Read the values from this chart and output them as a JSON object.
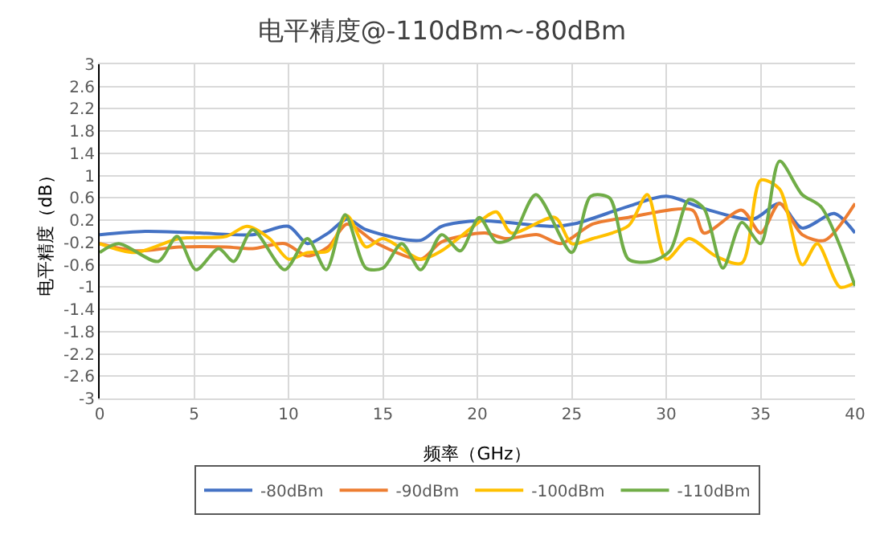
{
  "chart_data": {
    "type": "line",
    "title": "电平精度@-110dBm~-80dBm",
    "xlabel": "频率（GHz）",
    "ylabel": "电平精度（dB）",
    "xlim": [
      0,
      40
    ],
    "xticks": [
      0,
      5,
      10,
      15,
      20,
      25,
      30,
      35,
      40
    ],
    "ylim": [
      -3,
      3
    ],
    "yticks": [
      -3,
      -2.6,
      -2.2,
      -1.8,
      -1.4,
      -1,
      -0.6,
      -0.2,
      0.2,
      0.6,
      1,
      1.4,
      1.8,
      2.2,
      2.6,
      3
    ],
    "grid": true,
    "legend": "bottom",
    "marker": "none",
    "line_style": "solid",
    "series": [
      {
        "name": "-80dBm",
        "color": "#4472c4",
        "x": [
          0,
          2.4,
          5.3,
          8.1,
          10,
          11,
          12.1,
          13.1,
          14.1,
          17,
          18.1,
          20.1,
          24,
          25.2,
          28,
          30,
          32,
          34.6,
          36,
          37.2,
          38.9,
          40
        ],
        "values": [
          -0.06,
          0,
          -0.03,
          -0.06,
          0.09,
          -0.22,
          -0.03,
          0.22,
          0.03,
          -0.16,
          0.09,
          0.19,
          0.09,
          0.14,
          0.45,
          0.63,
          0.41,
          0.22,
          0.5,
          0.06,
          0.32,
          -0.03
        ]
      },
      {
        "name": "-90dBm",
        "color": "#ed7d31",
        "x": [
          0,
          1.9,
          4.2,
          6.7,
          8.1,
          9.8,
          11,
          12.1,
          13.1,
          14.7,
          17,
          18.1,
          20.4,
          21.5,
          23.2,
          24.4,
          26.1,
          28,
          31.4,
          32,
          34,
          35,
          36,
          37.2,
          38.4,
          40
        ],
        "values": [
          -0.22,
          -0.35,
          -0.28,
          -0.28,
          -0.31,
          -0.22,
          -0.44,
          -0.28,
          0.13,
          -0.22,
          -0.5,
          -0.19,
          -0.03,
          -0.13,
          -0.06,
          -0.22,
          0.13,
          0.25,
          0.38,
          -0.03,
          0.38,
          -0.03,
          0.5,
          -0.06,
          -0.16,
          0.5
        ]
      },
      {
        "name": "-100dBm",
        "color": "#ffc000",
        "x": [
          0,
          1.9,
          4.2,
          6.7,
          7.8,
          9,
          10,
          11,
          12.1,
          13.1,
          14.1,
          15,
          17,
          18.1,
          19.8,
          21,
          21.8,
          24.1,
          25,
          26.1,
          28,
          29,
          30,
          31.2,
          32.6,
          34,
          35,
          36,
          37.2,
          38,
          39.2,
          40
        ],
        "values": [
          -0.22,
          -0.38,
          -0.13,
          -0.09,
          0.09,
          -0.13,
          -0.5,
          -0.38,
          -0.35,
          0.28,
          -0.28,
          -0.13,
          -0.5,
          -0.35,
          0.09,
          0.35,
          -0.03,
          0.25,
          -0.22,
          -0.13,
          0.1,
          0.66,
          -0.5,
          -0.13,
          -0.44,
          -0.57,
          0.92,
          0.76,
          -0.6,
          -0.22,
          -1.0,
          -0.92
        ]
      },
      {
        "name": "-110dBm",
        "color": "#70ad47",
        "x": [
          0,
          1,
          3.1,
          4.1,
          5.1,
          6.3,
          7.1,
          8.1,
          9.8,
          11,
          12,
          13,
          14.1,
          15,
          16,
          17,
          18.1,
          19.1,
          20.1,
          21,
          21.8,
          23.1,
          25,
          26,
          27,
          28,
          29.2,
          30.2,
          31.2,
          32,
          33,
          34,
          35,
          36,
          37.2,
          38.2,
          40
        ],
        "values": [
          -0.38,
          -0.22,
          -0.54,
          -0.09,
          -0.69,
          -0.31,
          -0.54,
          0.03,
          -0.69,
          -0.13,
          -0.69,
          0.3,
          -0.66,
          -0.66,
          -0.22,
          -0.69,
          -0.06,
          -0.35,
          0.25,
          -0.19,
          -0.13,
          0.66,
          -0.38,
          0.63,
          0.6,
          -0.5,
          -0.54,
          -0.35,
          0.57,
          0.41,
          -0.66,
          0.16,
          -0.22,
          1.26,
          0.66,
          0.44,
          -0.98
        ]
      }
    ]
  }
}
